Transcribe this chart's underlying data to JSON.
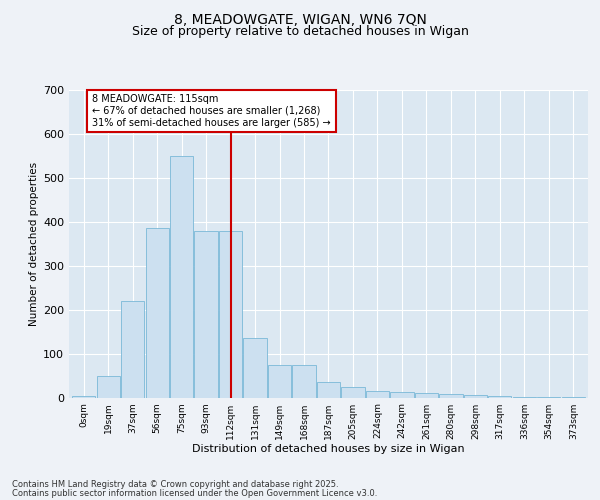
{
  "title1": "8, MEADOWGATE, WIGAN, WN6 7QN",
  "title2": "Size of property relative to detached houses in Wigan",
  "xlabel": "Distribution of detached houses by size in Wigan",
  "ylabel": "Number of detached properties",
  "categories": [
    "0sqm",
    "19sqm",
    "37sqm",
    "56sqm",
    "75sqm",
    "93sqm",
    "112sqm",
    "131sqm",
    "149sqm",
    "168sqm",
    "187sqm",
    "205sqm",
    "224sqm",
    "242sqm",
    "261sqm",
    "280sqm",
    "298sqm",
    "317sqm",
    "336sqm",
    "354sqm",
    "373sqm"
  ],
  "bar_values": [
    3,
    50,
    220,
    385,
    550,
    380,
    380,
    135,
    75,
    75,
    35,
    25,
    15,
    12,
    10,
    8,
    5,
    3,
    2,
    1,
    1
  ],
  "bar_color": "#cce0f0",
  "bar_edgecolor": "#7ab8d8",
  "vline_x_index": 6,
  "vline_color": "#cc0000",
  "annotation_text": "8 MEADOWGATE: 115sqm\n← 67% of detached houses are smaller (1,268)\n31% of semi-detached houses are larger (585) →",
  "annotation_box_facecolor": "#ffffff",
  "annotation_box_edgecolor": "#cc0000",
  "footer1": "Contains HM Land Registry data © Crown copyright and database right 2025.",
  "footer2": "Contains public sector information licensed under the Open Government Licence v3.0.",
  "background_color": "#eef2f7",
  "plot_bg_color": "#dce8f2",
  "ylim": [
    0,
    700
  ],
  "yticks": [
    0,
    100,
    200,
    300,
    400,
    500,
    600,
    700
  ],
  "title1_fontsize": 10,
  "title2_fontsize": 9
}
